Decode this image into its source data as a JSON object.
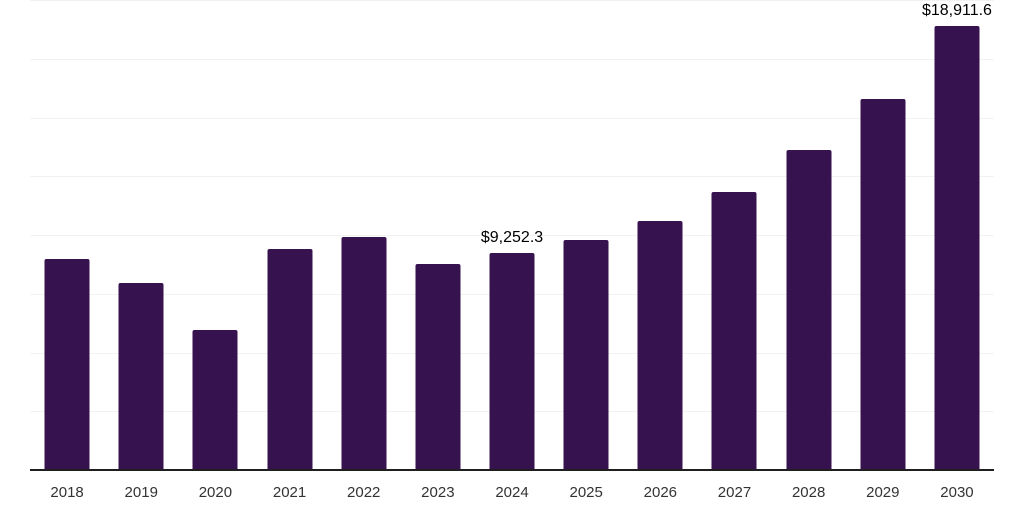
{
  "chart_data": {
    "type": "bar",
    "title": "",
    "xlabel": "",
    "ylabel": "",
    "categories": [
      "2018",
      "2019",
      "2020",
      "2021",
      "2022",
      "2023",
      "2024",
      "2025",
      "2026",
      "2027",
      "2028",
      "2029",
      "2030"
    ],
    "values": [
      9000,
      7950,
      5950,
      9400,
      9900,
      8750,
      9252.3,
      9800,
      10600,
      11850,
      13600,
      15800,
      18911.6
    ],
    "value_labels": [
      "",
      "",
      "",
      "",
      "",
      "",
      "$9,252.3",
      "",
      "",
      "",
      "",
      "",
      "$18,911.6"
    ],
    "ylim": [
      0,
      20000
    ],
    "gridline_interval": 2500,
    "grid": true,
    "legend": "none",
    "colors": {
      "bar": "#36124E",
      "gridline": "#f2f2f2",
      "axis_line": "#1f1f1f",
      "tick_label": "#333333",
      "data_label": "#000000"
    }
  }
}
